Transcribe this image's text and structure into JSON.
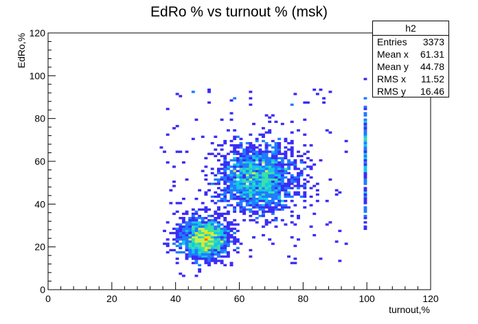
{
  "chart_data": {
    "type": "heatmap",
    "title": "EdRo % vs turnout % (msk)",
    "xlabel": "turnout,%",
    "ylabel": "EdRo,%",
    "xlim": [
      0,
      120
    ],
    "ylim": [
      0,
      120
    ],
    "x_ticks": [
      0,
      20,
      40,
      60,
      80,
      100,
      120
    ],
    "y_ticks": [
      0,
      20,
      40,
      60,
      80,
      100,
      120
    ],
    "bins_x": 120,
    "bins_y": 120,
    "stats": {
      "name": "h2",
      "entries": [
        {
          "label": "Entries",
          "value": "3373"
        },
        {
          "label": "Mean x",
          "value": "61.31"
        },
        {
          "label": "Mean y",
          "value": "44.78"
        },
        {
          "label": "RMS x",
          "value": "11.52"
        },
        {
          "label": "RMS y",
          "value": "16.46"
        }
      ]
    },
    "clusters": [
      {
        "x": 49,
        "y": 24,
        "sx": 4,
        "sy": 5,
        "weight": 1300
      },
      {
        "x": 66,
        "y": 52,
        "sx": 6,
        "sy": 8,
        "weight": 1700
      },
      {
        "x": 100,
        "y": 62,
        "sx": 0.3,
        "sy": 15,
        "weight": 120
      }
    ],
    "colors": [
      "#7a00e0",
      "#3a2cf5",
      "#1f7bff",
      "#13c6ea",
      "#3ae0a6",
      "#c8f04a",
      "#f0e000",
      "#ff6a00"
    ]
  }
}
